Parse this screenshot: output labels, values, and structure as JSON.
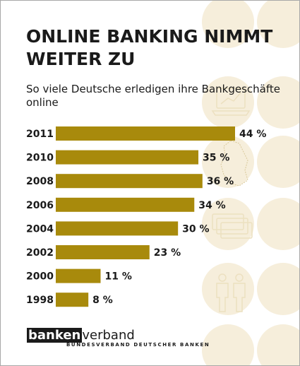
{
  "header": {
    "title_line1": "ONLINE BANKING NIMMT",
    "title_line2": "WEITER ZU",
    "subtitle_line1": "So viele Deutsche erledigen ihre Bankgeschäfte",
    "subtitle_line2": "online"
  },
  "chart_data": {
    "type": "bar",
    "orientation": "horizontal",
    "categories": [
      "2011",
      "2010",
      "2008",
      "2006",
      "2004",
      "2002",
      "2000",
      "1998"
    ],
    "values": [
      44,
      35,
      36,
      34,
      30,
      23,
      11,
      8
    ],
    "value_labels": [
      "44 %",
      "35 %",
      "36 %",
      "34 %",
      "30 %",
      "23 %",
      "11 %",
      "8 %"
    ],
    "xlim": [
      0,
      44
    ],
    "grid": false,
    "bar_color": "#a88a0c"
  },
  "footer": {
    "logo_box": "banken",
    "logo_rest": "verband",
    "logo_sub": "BUNDESVERBAND DEUTSCHER BANKEN"
  },
  "colors": {
    "decor_circle": "#f6eedb",
    "decor_line": "#ece0c0",
    "text": "#1a1a1a"
  },
  "decor_icons": [
    "laptop-icon",
    "germany-map-icon",
    "banknotes-icon",
    "people-icon"
  ]
}
